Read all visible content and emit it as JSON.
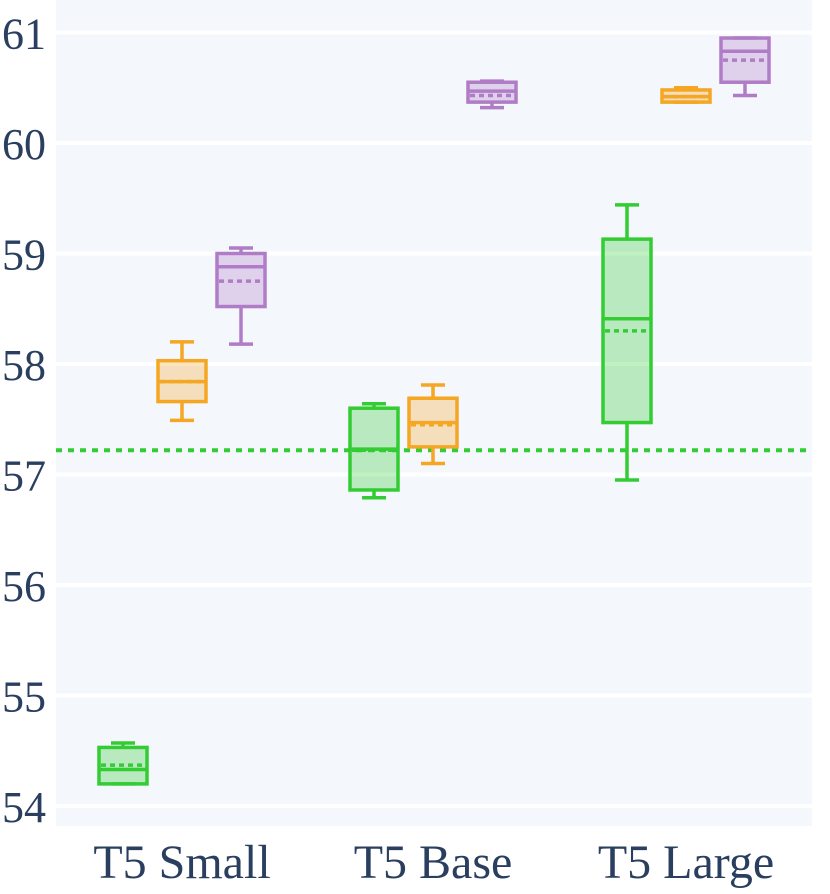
{
  "chart_data": {
    "type": "box",
    "categories": [
      "T5 Small",
      "T5 Base",
      "T5 Large"
    ],
    "ylim": [
      53.8,
      61.3
    ],
    "yticks": [
      54,
      55,
      56,
      57,
      58,
      59,
      60,
      61
    ],
    "grid": true,
    "legend": "none",
    "reference_line": {
      "y": 57.22,
      "color": "#33cc33",
      "style": "dotted"
    },
    "series": [
      {
        "color": "#33cc33",
        "fill": "rgba(51,204,51,0.3)",
        "boxes": [
          {
            "min": 54.2,
            "q1": 54.2,
            "median": 54.33,
            "mean": 54.37,
            "q3": 54.53,
            "max": 54.57
          },
          {
            "min": 56.79,
            "q1": 56.86,
            "median": 57.23,
            "mean": 57.22,
            "q3": 57.6,
            "max": 57.64
          },
          {
            "min": 56.95,
            "q1": 57.47,
            "median": 58.41,
            "mean": 58.3,
            "q3": 59.13,
            "max": 59.44
          }
        ]
      },
      {
        "color": "#f5a623",
        "fill": "rgba(245,166,35,0.3)",
        "boxes": [
          {
            "min": 57.49,
            "q1": 57.66,
            "median": 57.84,
            "mean": 57.84,
            "q3": 58.03,
            "max": 58.2
          },
          {
            "min": 57.1,
            "q1": 57.25,
            "median": 57.47,
            "mean": 57.45,
            "q3": 57.69,
            "max": 57.81
          },
          {
            "min": 60.37,
            "q1": 60.37,
            "median": 60.42,
            "mean": 60.42,
            "q3": 60.48,
            "max": 60.5
          }
        ]
      },
      {
        "color": "#b07cc6",
        "fill": "rgba(176,124,198,0.3)",
        "boxes": [
          {
            "min": 58.18,
            "q1": 58.52,
            "median": 58.88,
            "mean": 58.75,
            "q3": 59.0,
            "max": 59.05
          },
          {
            "min": 60.32,
            "q1": 60.37,
            "median": 60.47,
            "mean": 60.43,
            "q3": 60.55,
            "max": 60.56
          },
          {
            "min": 60.43,
            "q1": 60.55,
            "median": 60.83,
            "mean": 60.75,
            "q3": 60.95,
            "max": 60.95
          }
        ]
      }
    ]
  }
}
